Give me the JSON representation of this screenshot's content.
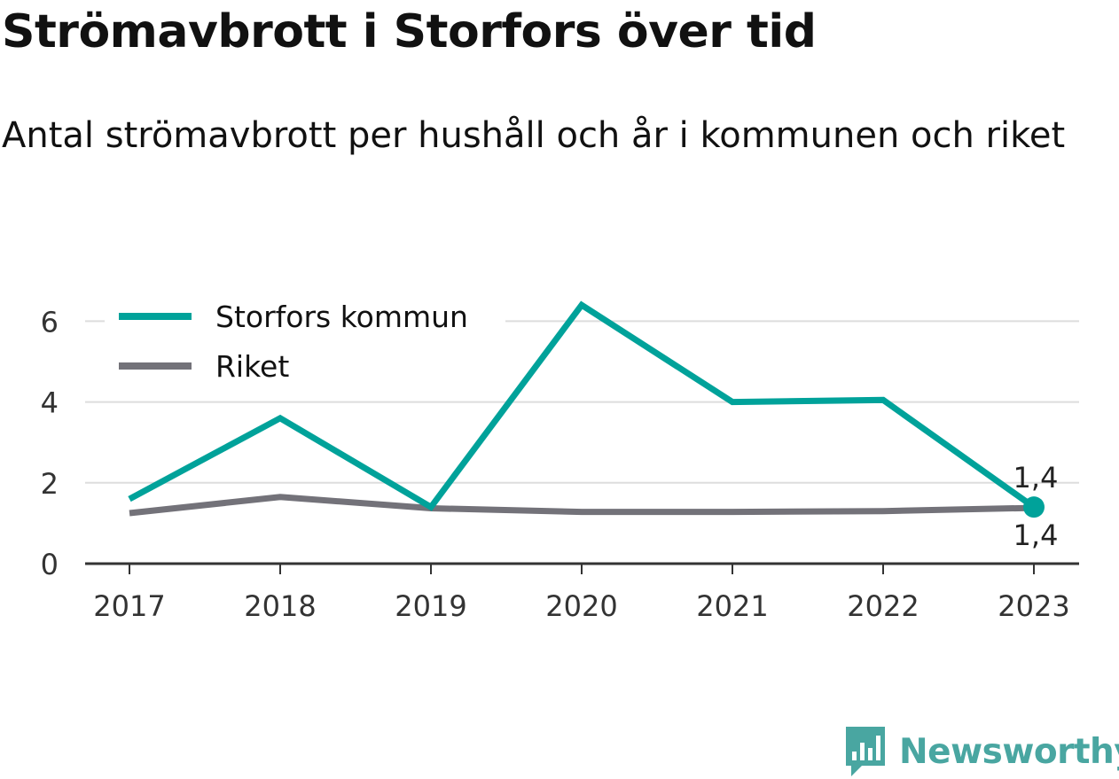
{
  "title": "Strömavbrott i Storfors över tid",
  "subtitle": "Antal strömavbrott per hushåll och år i kommunen och riket",
  "brand": {
    "name": "Newsworthy",
    "logo_icon": "newsworthy-chart-badge-icon"
  },
  "colors": {
    "storfors": "#00a29a",
    "riket": "#737279",
    "brand": "#49a6a1",
    "grid": "#dddddd",
    "axis": "#333333"
  },
  "chart_data": {
    "type": "line",
    "title": "Strömavbrott i Storfors över tid",
    "subtitle": "Antal strömavbrott per hushåll och år i kommunen och riket",
    "xlabel": "",
    "ylabel": "",
    "categories": [
      "2017",
      "2018",
      "2019",
      "2020",
      "2021",
      "2022",
      "2023"
    ],
    "ylim": [
      0,
      7
    ],
    "yticks": [
      0,
      2,
      4,
      6
    ],
    "grid": true,
    "legend_position": "top-left",
    "series": [
      {
        "name": "Storfors kommun",
        "color": "#00a29a",
        "values": [
          1.6,
          3.6,
          1.4,
          6.4,
          4.0,
          4.05,
          1.4
        ]
      },
      {
        "name": "Riket",
        "color": "#737279",
        "values": [
          1.25,
          1.65,
          1.37,
          1.28,
          1.28,
          1.3,
          1.38
        ]
      }
    ],
    "annotations": [
      {
        "series": "Storfors kommun",
        "category": "2023",
        "label": "1,4",
        "placement": "above"
      },
      {
        "series": "Riket",
        "category": "2023",
        "label": "1,4",
        "placement": "below"
      }
    ]
  }
}
